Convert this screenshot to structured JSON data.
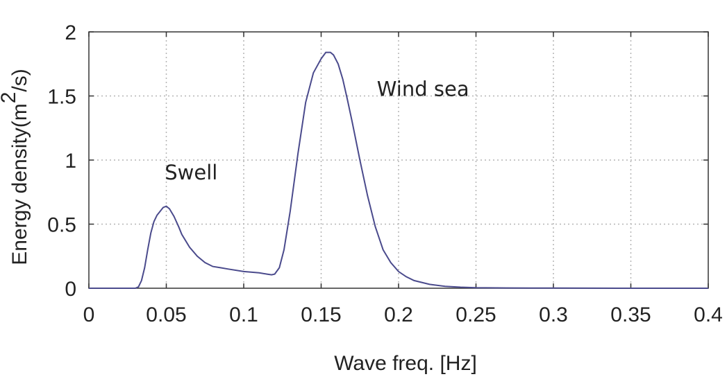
{
  "colors": {
    "series": "#4a4a8c",
    "ylabel": "#8b1a1a",
    "grid": "#b4b4b4",
    "frame": "#333333",
    "text": "#222222"
  },
  "chart_data": {
    "type": "line",
    "title": "",
    "xlabel": "Wave freq. [Hz]",
    "ylabel": {
      "prefix": "Energy density(m",
      "superscript": "2",
      "suffix": "/s)"
    },
    "xlim": [
      0,
      0.4
    ],
    "ylim": [
      0,
      2
    ],
    "x_ticks": [
      0,
      0.05,
      0.1,
      0.15,
      0.2,
      0.25,
      0.3,
      0.35,
      0.4
    ],
    "x_tick_labels": [
      "0",
      "0.05",
      "0.1",
      "0.15",
      "0.2",
      "0.25",
      "0.3",
      "0.35",
      "0.4"
    ],
    "y_ticks": [
      0,
      0.5,
      1,
      1.5,
      2
    ],
    "y_tick_labels": [
      "0",
      "0.5",
      "1",
      "1.5",
      "2"
    ],
    "grid": true,
    "series": [
      {
        "x": [
          0,
          0.03,
          0.032,
          0.034,
          0.036,
          0.038,
          0.04,
          0.042,
          0.044,
          0.046,
          0.048,
          0.05,
          0.052,
          0.055,
          0.058,
          0.06,
          0.065,
          0.07,
          0.075,
          0.08,
          0.085,
          0.09,
          0.1,
          0.11,
          0.115,
          0.118,
          0.12,
          0.123,
          0.126,
          0.13,
          0.135,
          0.14,
          0.145,
          0.15,
          0.153,
          0.156,
          0.158,
          0.161,
          0.164,
          0.167,
          0.17,
          0.175,
          0.18,
          0.185,
          0.19,
          0.195,
          0.2,
          0.205,
          0.21,
          0.22,
          0.23,
          0.24,
          0.25,
          0.27,
          0.3,
          0.35,
          0.4
        ],
        "y": [
          0,
          0,
          0.01,
          0.06,
          0.16,
          0.3,
          0.43,
          0.52,
          0.57,
          0.6,
          0.63,
          0.64,
          0.62,
          0.56,
          0.48,
          0.42,
          0.32,
          0.25,
          0.2,
          0.17,
          0.16,
          0.15,
          0.13,
          0.12,
          0.11,
          0.105,
          0.11,
          0.16,
          0.3,
          0.6,
          1.05,
          1.45,
          1.68,
          1.79,
          1.84,
          1.84,
          1.82,
          1.75,
          1.63,
          1.47,
          1.3,
          1.0,
          0.72,
          0.48,
          0.3,
          0.2,
          0.13,
          0.09,
          0.06,
          0.03,
          0.015,
          0.008,
          0.004,
          0.002,
          0.001,
          0,
          0
        ]
      }
    ],
    "annotations": [
      {
        "text": "Swell",
        "x": 0.049,
        "y": 0.85
      },
      {
        "text": "Wind sea",
        "x": 0.186,
        "y": 1.5
      }
    ]
  }
}
